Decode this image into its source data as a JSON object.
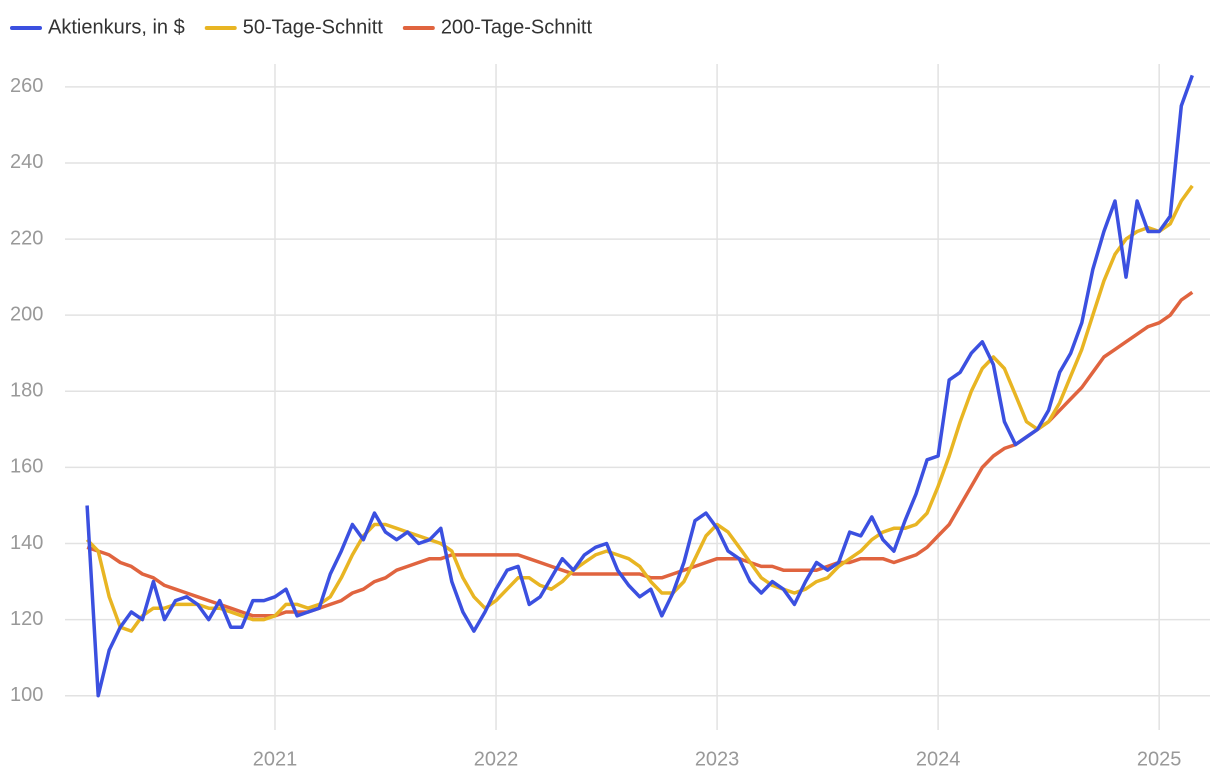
{
  "chart_data": {
    "type": "line",
    "x": [
      2020.15,
      2020.2,
      2020.25,
      2020.3,
      2020.35,
      2020.4,
      2020.45,
      2020.5,
      2020.55,
      2020.6,
      2020.65,
      2020.7,
      2020.75,
      2020.8,
      2020.85,
      2020.9,
      2020.95,
      2021,
      2021.05,
      2021.1,
      2021.15,
      2021.2,
      2021.25,
      2021.3,
      2021.35,
      2021.4,
      2021.45,
      2021.5,
      2021.55,
      2021.6,
      2021.65,
      2021.7,
      2021.75,
      2021.8,
      2021.85,
      2021.9,
      2021.95,
      2022,
      2022.05,
      2022.1,
      2022.15,
      2022.2,
      2022.25,
      2022.3,
      2022.35,
      2022.4,
      2022.45,
      2022.5,
      2022.55,
      2022.6,
      2022.65,
      2022.7,
      2022.75,
      2022.8,
      2022.85,
      2022.9,
      2022.95,
      2023,
      2023.05,
      2023.1,
      2023.15,
      2023.2,
      2023.25,
      2023.3,
      2023.35,
      2023.4,
      2023.45,
      2023.5,
      2023.55,
      2023.6,
      2023.65,
      2023.7,
      2023.75,
      2023.8,
      2023.85,
      2023.9,
      2023.95,
      2024,
      2024.05,
      2024.1,
      2024.15,
      2024.2,
      2024.25,
      2024.3,
      2024.35,
      2024.4,
      2024.45,
      2024.5,
      2024.55,
      2024.6,
      2024.65,
      2024.7,
      2024.75,
      2024.8,
      2024.85,
      2024.9,
      2024.95,
      2025,
      2025.05,
      2025.1,
      2025.15
    ],
    "series": [
      {
        "name": "Aktienkurs, in $",
        "color": "#3b50e0",
        "values": [
          150,
          100,
          112,
          118,
          122,
          120,
          130,
          120,
          125,
          126,
          124,
          120,
          125,
          118,
          118,
          125,
          125,
          126,
          128,
          121,
          122,
          123,
          132,
          138,
          145,
          141,
          148,
          143,
          141,
          143,
          140,
          141,
          144,
          130,
          122,
          117,
          122,
          128,
          133,
          134,
          124,
          126,
          131,
          136,
          133,
          137,
          139,
          140,
          133,
          129,
          126,
          128,
          121,
          127,
          135,
          146,
          148,
          144,
          138,
          136,
          130,
          127,
          130,
          128,
          124,
          130,
          135,
          133,
          135,
          143,
          142,
          147,
          141,
          138,
          146,
          153,
          162,
          163,
          183,
          185,
          190,
          193,
          187,
          172,
          166,
          168,
          170,
          175,
          185,
          190,
          198,
          212,
          222,
          230,
          210,
          230,
          222,
          222,
          226,
          255,
          263
        ]
      },
      {
        "name": "50-Tage-Schnitt",
        "color": "#e8b523",
        "values": [
          141,
          138,
          126,
          118,
          117,
          121,
          123,
          123,
          124,
          124,
          124,
          123,
          123,
          122,
          121,
          120,
          120,
          121,
          124,
          124,
          123,
          124,
          126,
          131,
          137,
          142,
          145,
          145,
          144,
          143,
          142,
          141,
          140,
          138,
          131,
          126,
          123,
          125,
          128,
          131,
          131,
          129,
          128,
          130,
          133,
          135,
          137,
          138,
          137,
          136,
          134,
          130,
          127,
          127,
          130,
          136,
          142,
          145,
          143,
          139,
          135,
          131,
          129,
          128,
          127,
          128,
          130,
          131,
          134,
          136,
          138,
          141,
          143,
          144,
          144,
          145,
          148,
          155,
          163,
          172,
          180,
          186,
          189,
          186,
          179,
          172,
          170,
          172,
          177,
          184,
          191,
          200,
          209,
          216,
          220,
          222,
          223,
          222,
          224,
          230,
          234
        ]
      },
      {
        "name": "200-Tage-Schnitt",
        "color": "#e0643f",
        "values": [
          139,
          138,
          137,
          135,
          134,
          132,
          131,
          129,
          128,
          127,
          126,
          125,
          124,
          123,
          122,
          121,
          121,
          121,
          122,
          122,
          122,
          123,
          124,
          125,
          127,
          128,
          130,
          131,
          133,
          134,
          135,
          136,
          136,
          137,
          137,
          137,
          137,
          137,
          137,
          137,
          136,
          135,
          134,
          133,
          132,
          132,
          132,
          132,
          132,
          132,
          132,
          131,
          131,
          132,
          133,
          134,
          135,
          136,
          136,
          136,
          135,
          134,
          134,
          133,
          133,
          133,
          133,
          134,
          135,
          135,
          136,
          136,
          136,
          135,
          136,
          137,
          139,
          142,
          145,
          150,
          155,
          160,
          163,
          165,
          166,
          168,
          170,
          172,
          175,
          178,
          181,
          185,
          189,
          191,
          193,
          195,
          197,
          198,
          200,
          204,
          206
        ]
      }
    ],
    "xlim": [
      2020.05,
      2025.23
    ],
    "xticks": [
      2021,
      2022,
      2023,
      2024,
      2025
    ],
    "ylim": [
      91,
      266
    ],
    "yticks": [
      100,
      120,
      140,
      160,
      180,
      200,
      220,
      240,
      260
    ],
    "grid": true
  }
}
